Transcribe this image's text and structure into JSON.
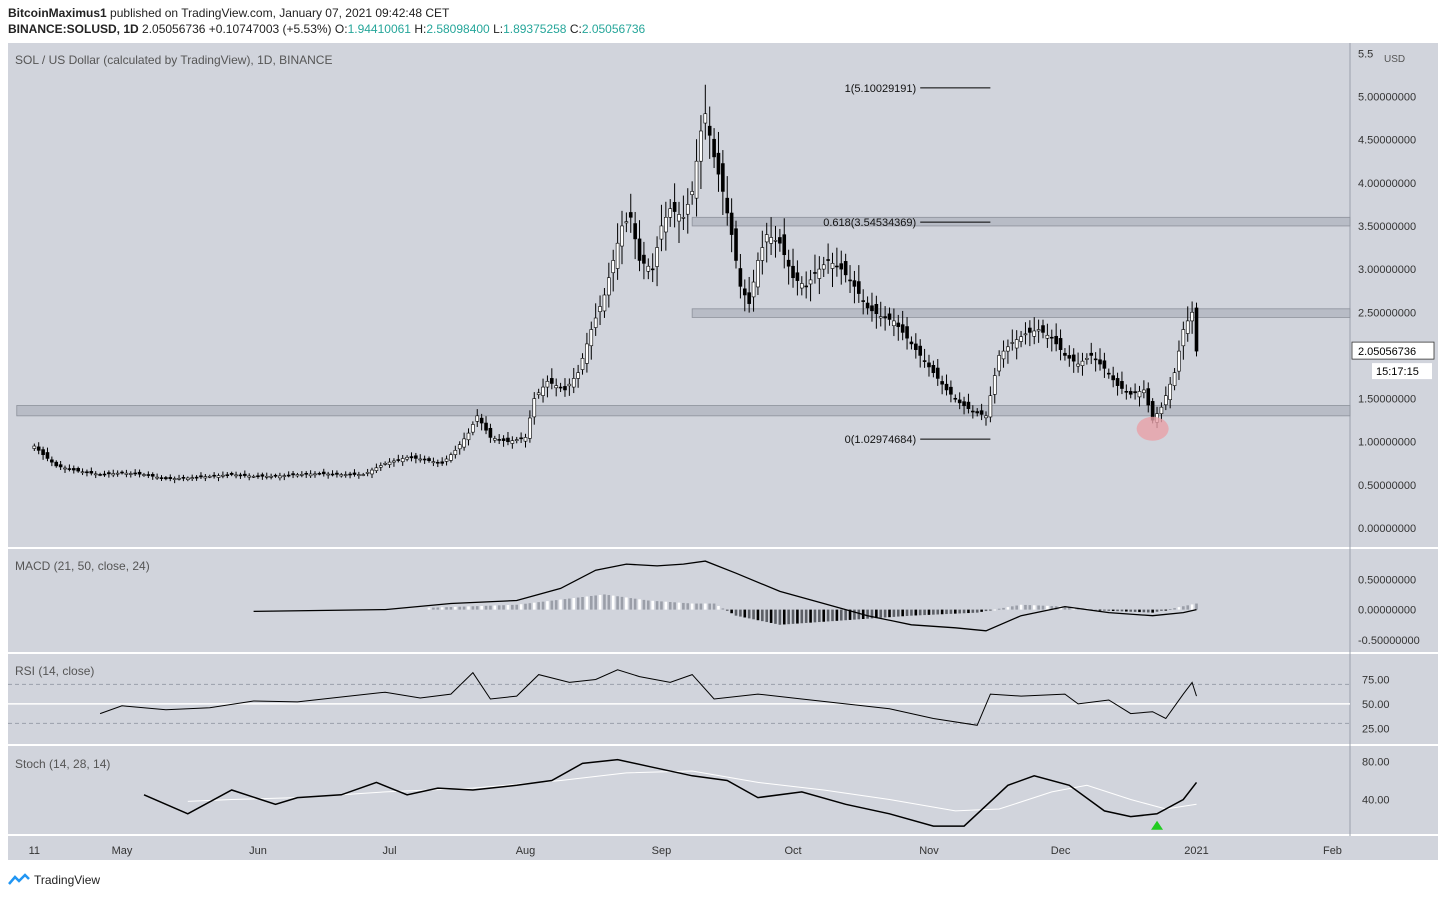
{
  "header": {
    "publisher": "BitcoinMaximus1",
    "published_text": "published on TradingView.com, January 07, 2021 09:42:48 CET",
    "symbol": "BINANCE:SOLUSD, 1D",
    "last": "2.05056736",
    "change": "+0.10747003 (+5.53%)",
    "o_label": "O:",
    "o": "1.94410061",
    "h_label": "H:",
    "h": "2.58098400",
    "l_label": "L:",
    "l": "1.89375258",
    "c_label": "C:",
    "c": "2.05056736"
  },
  "footer": {
    "brand": "TradingView"
  },
  "colors": {
    "panel_bg": "#d1d4dc",
    "line": "#000000",
    "up": "#ffffff",
    "down": "#000000",
    "zone": "#b8bcc6",
    "signal": "#22cc22",
    "marker": "#e8a0a8"
  },
  "chart_data": [
    {
      "type": "candlestick",
      "title": "SOL / US Dollar (calculated by TradingView), 1D, BINANCE",
      "currency": "USD",
      "y_ticks": [
        "5.5",
        "5.00000000",
        "4.50000000",
        "4.00000000",
        "3.50000000",
        "3.00000000",
        "2.50000000",
        "2.00000000",
        "1.50000000",
        "1.00000000",
        "0.50000000",
        "0.00000000"
      ],
      "ylim": [
        -0.15,
        5.55
      ],
      "x_ticks": [
        "11",
        "May",
        "Jun",
        "Jul",
        "Aug",
        "Sep",
        "Oct",
        "Nov",
        "Dec",
        "2021",
        "Feb"
      ],
      "x_tick_days": [
        0,
        20,
        51,
        81,
        112,
        143,
        173,
        204,
        234,
        265,
        296
      ],
      "x_range": [
        -6,
        300
      ],
      "price_label": "2.05056736",
      "countdown": "15:17:15",
      "last_price": 2.05,
      "zones": [
        [
          1.3,
          1.42
        ],
        [
          2.44,
          2.54
        ],
        [
          3.5,
          3.6
        ]
      ],
      "fib_levels": [
        {
          "label": "1(5.10029191)",
          "price": 5.1
        },
        {
          "label": "0.618(3.54534369)",
          "price": 3.545
        },
        {
          "label": "0(1.02974684)",
          "price": 1.03
        }
      ],
      "fib_day_range": [
        202,
        218
      ],
      "highlight": {
        "day": 255,
        "price": 1.15
      },
      "price_path": [
        [
          0,
          0.95
        ],
        [
          2,
          0.85
        ],
        [
          5,
          0.72
        ],
        [
          10,
          0.66
        ],
        [
          15,
          0.62
        ],
        [
          20,
          0.64
        ],
        [
          25,
          0.62
        ],
        [
          30,
          0.57
        ],
        [
          35,
          0.58
        ],
        [
          40,
          0.6
        ],
        [
          45,
          0.62
        ],
        [
          50,
          0.6
        ],
        [
          55,
          0.6
        ],
        [
          60,
          0.62
        ],
        [
          65,
          0.63
        ],
        [
          70,
          0.62
        ],
        [
          75,
          0.62
        ],
        [
          80,
          0.75
        ],
        [
          85,
          0.82
        ],
        [
          88,
          0.8
        ],
        [
          93,
          0.75
        ],
        [
          96,
          0.9
        ],
        [
          99,
          1.1
        ],
        [
          101,
          1.3
        ],
        [
          104,
          1.05
        ],
        [
          108,
          1.0
        ],
        [
          112,
          1.05
        ],
        [
          114,
          1.5
        ],
        [
          117,
          1.7
        ],
        [
          121,
          1.6
        ],
        [
          124,
          1.8
        ],
        [
          127,
          2.3
        ],
        [
          130,
          2.7
        ],
        [
          132,
          3.1
        ],
        [
          134,
          3.5
        ],
        [
          136,
          3.6
        ],
        [
          138,
          3.1
        ],
        [
          141,
          3.0
        ],
        [
          143,
          3.5
        ],
        [
          145,
          3.7
        ],
        [
          148,
          3.6
        ],
        [
          150,
          3.9
        ],
        [
          152,
          4.6
        ],
        [
          153,
          4.8
        ],
        [
          155,
          4.3
        ],
        [
          157,
          3.9
        ],
        [
          159,
          3.4
        ],
        [
          161,
          2.8
        ],
        [
          163,
          2.6
        ],
        [
          165,
          3.1
        ],
        [
          167,
          3.4
        ],
        [
          170,
          3.3
        ],
        [
          173,
          2.9
        ],
        [
          176,
          2.8
        ],
        [
          178,
          2.95
        ],
        [
          181,
          3.1
        ],
        [
          184,
          3.0
        ],
        [
          187,
          2.8
        ],
        [
          190,
          2.55
        ],
        [
          193,
          2.45
        ],
        [
          196,
          2.4
        ],
        [
          199,
          2.2
        ],
        [
          202,
          2.0
        ],
        [
          205,
          1.8
        ],
        [
          208,
          1.6
        ],
        [
          211,
          1.45
        ],
        [
          214,
          1.35
        ],
        [
          217,
          1.3
        ],
        [
          220,
          2.0
        ],
        [
          223,
          2.15
        ],
        [
          226,
          2.25
        ],
        [
          229,
          2.3
        ],
        [
          232,
          2.2
        ],
        [
          235,
          2.0
        ],
        [
          238,
          1.9
        ],
        [
          241,
          2.0
        ],
        [
          244,
          1.85
        ],
        [
          247,
          1.65
        ],
        [
          250,
          1.55
        ],
        [
          253,
          1.6
        ],
        [
          255,
          1.25
        ],
        [
          257,
          1.4
        ],
        [
          260,
          1.8
        ],
        [
          262,
          2.3
        ],
        [
          264,
          2.5
        ],
        [
          265,
          2.05
        ]
      ],
      "line_dates": [
        0,
        265
      ]
    },
    {
      "type": "line",
      "title": "MACD (21, 50, close, 24)",
      "y_ticks": [
        "0.50000000",
        "0.00000000",
        "-0.50000000"
      ],
      "ylim": [
        -0.6,
        0.9
      ],
      "macd": [
        [
          50,
          -0.03
        ],
        [
          80,
          0.0
        ],
        [
          95,
          0.1
        ],
        [
          110,
          0.15
        ],
        [
          120,
          0.35
        ],
        [
          128,
          0.65
        ],
        [
          135,
          0.75
        ],
        [
          142,
          0.72
        ],
        [
          148,
          0.75
        ],
        [
          153,
          0.8
        ],
        [
          160,
          0.6
        ],
        [
          170,
          0.3
        ],
        [
          180,
          0.1
        ],
        [
          190,
          -0.1
        ],
        [
          200,
          -0.25
        ],
        [
          210,
          -0.3
        ],
        [
          217,
          -0.35
        ],
        [
          225,
          -0.1
        ],
        [
          235,
          0.05
        ],
        [
          245,
          -0.05
        ],
        [
          255,
          -0.1
        ],
        [
          262,
          -0.05
        ],
        [
          265,
          0.0
        ]
      ],
      "hist": [
        [
          90,
          0.03
        ],
        [
          110,
          0.08
        ],
        [
          130,
          0.25
        ],
        [
          140,
          0.15
        ],
        [
          150,
          0.1
        ],
        [
          155,
          0.1
        ],
        [
          160,
          -0.1
        ],
        [
          170,
          -0.25
        ],
        [
          180,
          -0.2
        ],
        [
          190,
          -0.15
        ],
        [
          200,
          -0.1
        ],
        [
          215,
          -0.05
        ],
        [
          225,
          0.08
        ],
        [
          235,
          0.05
        ],
        [
          245,
          -0.02
        ],
        [
          255,
          -0.05
        ],
        [
          265,
          0.1
        ]
      ]
    },
    {
      "type": "line",
      "title": "RSI (14, close)",
      "y_ticks": [
        "75.00",
        "50.00",
        "25.00"
      ],
      "ylim": [
        15,
        95
      ],
      "levels": [
        70,
        50,
        30
      ],
      "rsi": [
        [
          15,
          40
        ],
        [
          20,
          48
        ],
        [
          30,
          44
        ],
        [
          40,
          46
        ],
        [
          50,
          53
        ],
        [
          60,
          52
        ],
        [
          70,
          57
        ],
        [
          80,
          62
        ],
        [
          88,
          56
        ],
        [
          95,
          60
        ],
        [
          100,
          82
        ],
        [
          104,
          55
        ],
        [
          110,
          58
        ],
        [
          115,
          80
        ],
        [
          122,
          72
        ],
        [
          128,
          75
        ],
        [
          133,
          85
        ],
        [
          138,
          78
        ],
        [
          145,
          72
        ],
        [
          150,
          80
        ],
        [
          155,
          55
        ],
        [
          165,
          60
        ],
        [
          175,
          55
        ],
        [
          185,
          50
        ],
        [
          195,
          45
        ],
        [
          205,
          35
        ],
        [
          215,
          28
        ],
        [
          218,
          60
        ],
        [
          225,
          58
        ],
        [
          235,
          60
        ],
        [
          238,
          50
        ],
        [
          245,
          54
        ],
        [
          250,
          40
        ],
        [
          255,
          42
        ],
        [
          258,
          35
        ],
        [
          262,
          60
        ],
        [
          264,
          72
        ],
        [
          265,
          58
        ]
      ]
    },
    {
      "type": "line",
      "title": "Stoch (14, 28, 14)",
      "y_ticks": [
        "80.00",
        "40.00"
      ],
      "ylim": [
        10,
        90
      ],
      "k": [
        [
          25,
          45
        ],
        [
          35,
          25
        ],
        [
          45,
          50
        ],
        [
          55,
          35
        ],
        [
          60,
          42
        ],
        [
          70,
          45
        ],
        [
          78,
          58
        ],
        [
          85,
          45
        ],
        [
          92,
          52
        ],
        [
          100,
          50
        ],
        [
          110,
          55
        ],
        [
          118,
          60
        ],
        [
          125,
          78
        ],
        [
          133,
          82
        ],
        [
          140,
          75
        ],
        [
          150,
          65
        ],
        [
          158,
          60
        ],
        [
          165,
          42
        ],
        [
          175,
          48
        ],
        [
          185,
          35
        ],
        [
          195,
          25
        ],
        [
          205,
          12
        ],
        [
          212,
          12
        ],
        [
          222,
          55
        ],
        [
          228,
          65
        ],
        [
          236,
          55
        ],
        [
          244,
          28
        ],
        [
          250,
          22
        ],
        [
          256,
          25
        ],
        [
          262,
          40
        ],
        [
          265,
          58
        ]
      ],
      "d": [
        [
          35,
          38
        ],
        [
          45,
          40
        ],
        [
          60,
          42
        ],
        [
          80,
          48
        ],
        [
          100,
          52
        ],
        [
          120,
          60
        ],
        [
          135,
          68
        ],
        [
          150,
          70
        ],
        [
          165,
          58
        ],
        [
          180,
          50
        ],
        [
          195,
          40
        ],
        [
          210,
          28
        ],
        [
          220,
          30
        ],
        [
          232,
          48
        ],
        [
          240,
          55
        ],
        [
          250,
          40
        ],
        [
          258,
          30
        ],
        [
          265,
          35
        ]
      ],
      "signal_day": 256
    }
  ]
}
